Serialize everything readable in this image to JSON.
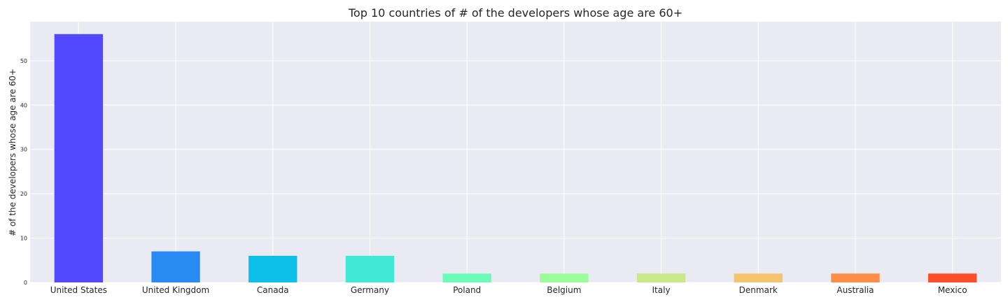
{
  "chart_data": {
    "type": "bar",
    "title": "Top 10 countries of # of the developers whose age are 60+",
    "xlabel": "",
    "ylabel": "# of the developers whose age are 60+",
    "categories": [
      "United States",
      "United Kingdom",
      "Canada",
      "Germany",
      "Poland",
      "Belgium",
      "Italy",
      "Denmark",
      "Australia",
      "Mexico"
    ],
    "values": [
      56,
      7,
      6,
      6,
      2,
      2,
      2,
      2,
      2,
      2
    ],
    "colors": [
      "#5249ff",
      "#288bf4",
      "#0cc0e9",
      "#40e8d6",
      "#6bfdb8",
      "#9cfc9a",
      "#c8e88a",
      "#f5c46e",
      "#ff8d47",
      "#ff4d2a"
    ],
    "ylim": [
      0,
      58.8
    ],
    "yticks": [
      0,
      10,
      20,
      30,
      40,
      50
    ],
    "grid": true,
    "legend": "none",
    "background": "#eaeaf2"
  }
}
